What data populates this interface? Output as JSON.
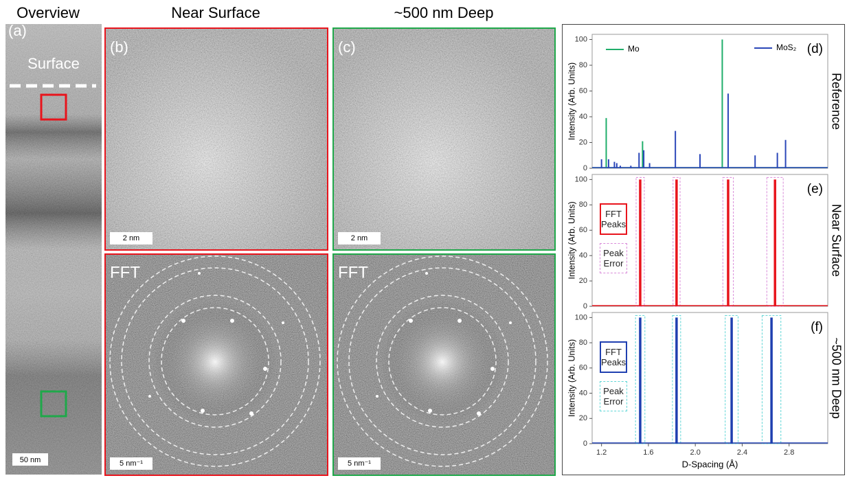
{
  "figure": {
    "headings": [
      "Overview",
      "Near Surface",
      "~500 nm Deep"
    ],
    "panels": {
      "a": {
        "label": "(a)",
        "surface": "Surface",
        "scale_bar": "50 nm"
      },
      "b": {
        "label": "(b)",
        "scale_bar": "2 nm"
      },
      "c": {
        "label": "(c)",
        "scale_bar": "2 nm"
      },
      "b_fft": {
        "label": "FFT",
        "scale_bar": "5 nm⁻¹"
      },
      "c_fft": {
        "label": "FFT",
        "scale_bar": "5 nm⁻¹"
      }
    }
  },
  "chart_data": [
    {
      "type": "stem",
      "panel_label": "(d)",
      "side_label": "Reference",
      "ylabel": "Intensity (Arb. Units)",
      "xlim": [
        1.12,
        3.13
      ],
      "ylim": [
        0,
        104
      ],
      "yticks": [
        0,
        20,
        40,
        60,
        80,
        100
      ],
      "series": [
        {
          "name": "Mo",
          "color": "#1fae6a",
          "x": [
            1.24,
            1.55,
            2.23
          ],
          "values": [
            39,
            21,
            100
          ]
        },
        {
          "name": "MoS₂",
          "color": "#2a46b8",
          "x": [
            1.2,
            1.26,
            1.31,
            1.33,
            1.36,
            1.45,
            1.52,
            1.56,
            1.61,
            1.83,
            2.04,
            2.28,
            2.51,
            2.7,
            2.77
          ],
          "values": [
            7,
            7,
            5,
            4,
            2,
            2,
            12,
            14,
            4,
            29,
            11,
            58,
            10,
            12,
            22
          ]
        }
      ]
    },
    {
      "type": "stem",
      "panel_label": "(e)",
      "side_label": "Near Surface",
      "ylabel": "Intensity (Arb. Units)",
      "xlim": [
        1.12,
        3.13
      ],
      "ylim": [
        0,
        104
      ],
      "yticks": [
        0,
        20,
        40,
        60,
        80,
        100
      ],
      "series": [
        {
          "name": "FFT Peaks",
          "color": "#e8141c",
          "x": [
            1.53,
            1.84,
            2.28,
            2.68
          ],
          "values": [
            100,
            100,
            100,
            100
          ]
        }
      ],
      "error_x": {
        "name": "Peak Error",
        "color": "#d98ad9",
        "values": [
          0.035,
          0.03,
          0.045,
          0.07
        ]
      }
    },
    {
      "type": "stem",
      "panel_label": "(f)",
      "side_label": "~500 nm Deep",
      "ylabel": "Intensity (Arb. Units)",
      "xlabel": "D-Spacing (Å)",
      "xlim": [
        1.12,
        3.13
      ],
      "ylim": [
        0,
        104
      ],
      "yticks": [
        0,
        20,
        40,
        60,
        80,
        100
      ],
      "xticks": [
        1.2,
        1.6,
        {
          "value": 2,
          "label": "2.0"
        },
        2.4,
        2.8
      ],
      "series": [
        {
          "name": "FFT Peaks",
          "color": "#1f3fb0",
          "x": [
            1.53,
            1.84,
            2.31,
            2.65
          ],
          "values": [
            100,
            100,
            100,
            100
          ]
        }
      ],
      "error_x": {
        "name": "Peak Error",
        "color": "#5fd6d6",
        "values": [
          0.04,
          0.035,
          0.055,
          0.08
        ]
      }
    }
  ]
}
